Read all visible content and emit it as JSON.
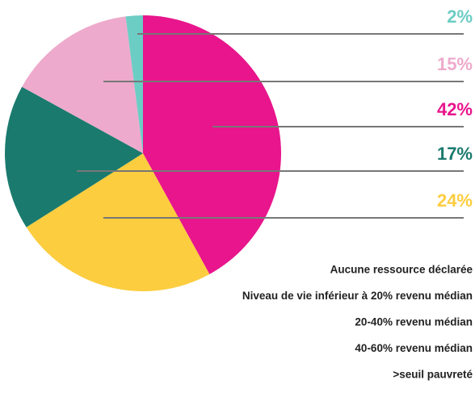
{
  "chart_data": {
    "type": "pie",
    "categories": [
      "Aucune ressource déclarée",
      "Niveau de vie inférieur à 20% revenu médian",
      "20-40% revenu médian",
      "40-60% revenu médian",
      ">seuil pauvreté"
    ],
    "values": [
      2,
      15,
      42,
      17,
      24
    ],
    "value_labels": [
      "2%",
      "15%",
      "42%",
      "17%",
      "24%"
    ],
    "colors": [
      "#6ccdc4",
      "#eeaacc",
      "#e8158c",
      "#1a7a6e",
      "#fccd3f"
    ]
  }
}
